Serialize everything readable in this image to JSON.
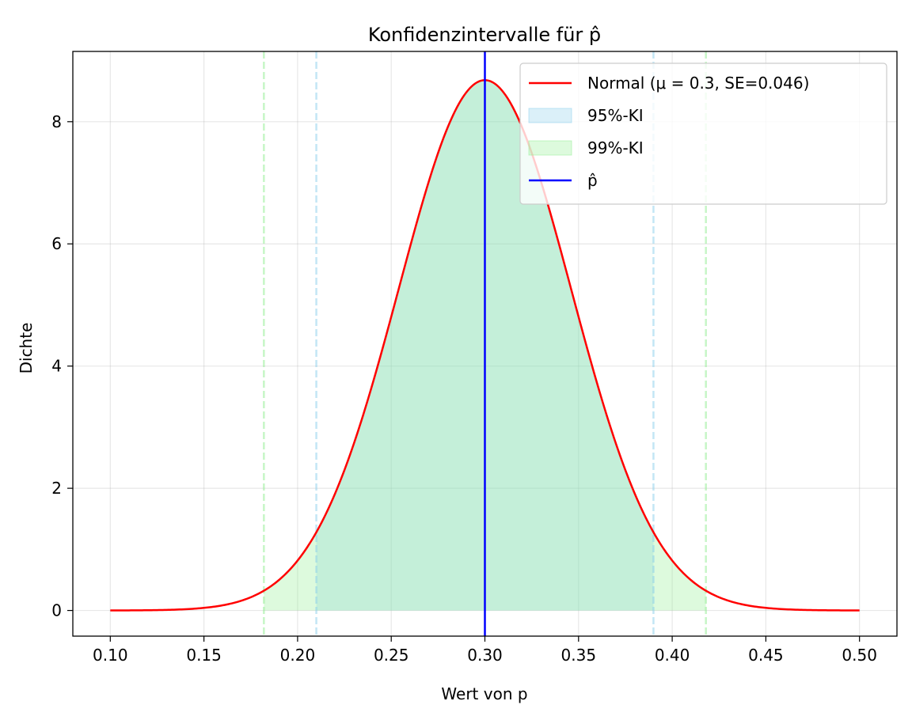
{
  "chart_data": {
    "type": "line",
    "title": "Konfidenzintervalle für p̂",
    "xlabel": "Wert von p",
    "ylabel": "Dichte",
    "xlim": [
      0.08,
      0.52
    ],
    "ylim": [
      -0.42,
      9.15
    ],
    "xticks": [
      "0.10",
      "0.15",
      "0.20",
      "0.25",
      "0.30",
      "0.35",
      "0.40",
      "0.45",
      "0.50"
    ],
    "yticks": [
      "0",
      "2",
      "4",
      "6",
      "8"
    ],
    "grid": true,
    "legend_position": "top-right",
    "distribution": {
      "name": "Normal (μ = 0.3, SE=0.046)",
      "mean": 0.3,
      "se": 0.046,
      "x_range": [
        0.1,
        0.5
      ],
      "peak_density": 8.68,
      "color": "#ff0000"
    },
    "intervals": [
      {
        "name": "95%-KI",
        "lower": 0.21,
        "upper": 0.39,
        "color": "#87ceeb"
      },
      {
        "name": "99%-KI",
        "lower": 0.182,
        "upper": 0.418,
        "color": "#90ee90"
      }
    ],
    "p_hat": {
      "name": "p̂",
      "value": 0.3,
      "color": "#0000ff"
    }
  }
}
